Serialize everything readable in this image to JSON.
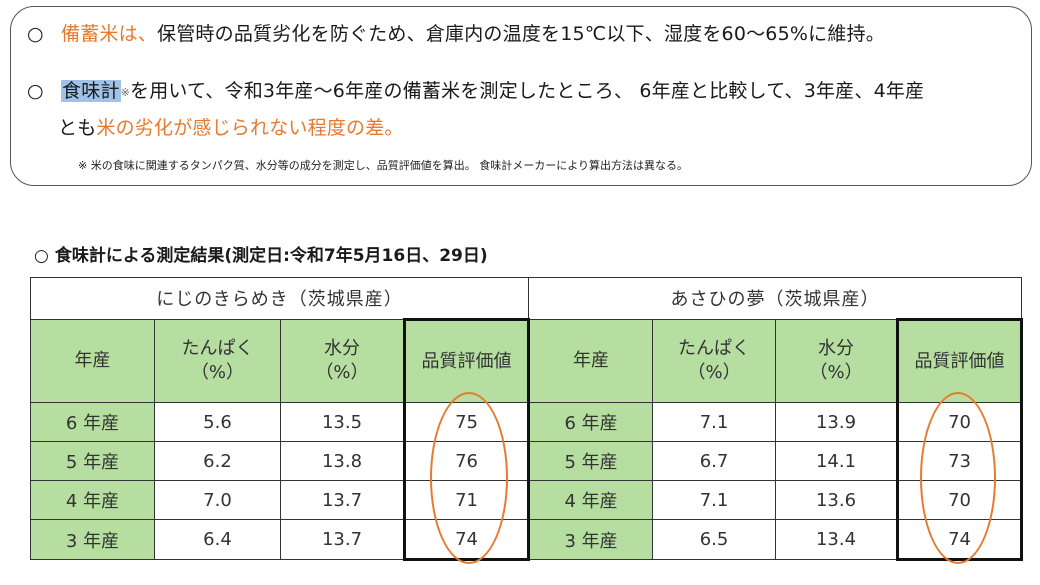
{
  "notes": {
    "line1": {
      "bullet": "○",
      "highlight": "備蓄米は、",
      "rest": "保管時の品質劣化を防ぐため、倉庫内の温度を15℃以下、湿度を60～65%に維持。"
    },
    "line2": {
      "bullet": "○",
      "term": "食味計",
      "mark": "※",
      "rest": "を用いて、令和3年産～6年産の備蓄米を測定したところ、 6年産と比較して、3年産、4年産"
    },
    "line3": {
      "lead": "とも",
      "highlight": "米の劣化が感じられない程度の差。"
    },
    "footnote": "※  米の食味に関連するタンパク質、水分等の成分を測定し、品質評価値を算出。 食味計メーカーにより算出方法は異なる。"
  },
  "subtitle": {
    "bullet": "○",
    "text": "食味計による測定結果(測定日:令和7年5月16日、29日)"
  },
  "table": {
    "varieties": [
      "にじのきらめき（茨城県産）",
      "あさひの夢（茨城県産）"
    ],
    "headers": [
      "年産",
      "たんぱく\n（%）",
      "水分\n（%）",
      "品質評価値",
      "年産",
      "たんぱく\n（%）",
      "水分\n（%）",
      "品質評価値"
    ],
    "rows": [
      [
        "6 年産",
        "5.6",
        "13.5",
        "75",
        "6 年産",
        "7.1",
        "13.9",
        "70"
      ],
      [
        "5 年産",
        "6.2",
        "13.8",
        "76",
        "5 年産",
        "6.7",
        "14.1",
        "73"
      ],
      [
        "4 年産",
        "7.0",
        "13.7",
        "71",
        "4 年産",
        "7.1",
        "13.6",
        "70"
      ],
      [
        "3 年産",
        "6.4",
        "13.7",
        "74",
        "3 年産",
        "6.5",
        "13.4",
        "74"
      ]
    ]
  },
  "colors": {
    "accent": "#e67a2e",
    "header_green": "#b6dea0",
    "highlight_blue": "#9fc2e6"
  }
}
